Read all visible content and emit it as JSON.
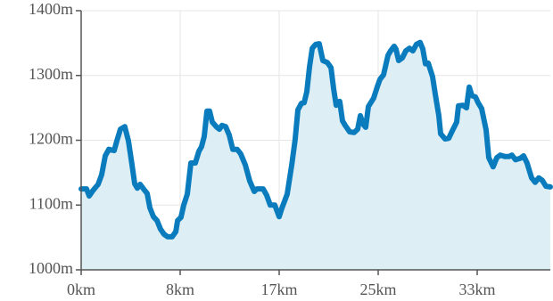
{
  "chart_data": {
    "type": "area",
    "x": [
      0.0,
      0.45,
      0.67,
      0.97,
      1.42,
      1.72,
      2.02,
      2.32,
      2.77,
      2.99,
      3.29,
      3.66,
      3.96,
      4.26,
      4.49,
      4.71,
      4.94,
      5.23,
      5.53,
      5.76,
      6.06,
      6.36,
      6.65,
      6.95,
      7.25,
      7.63,
      7.93,
      8.08,
      8.37,
      8.6,
      8.9,
      9.2,
      9.57,
      9.87,
      10.09,
      10.32,
      10.54,
      10.77,
      10.99,
      11.37,
      11.59,
      11.81,
      12.11,
      12.41,
      12.71,
      13.08,
      13.38,
      13.76,
      14.13,
      14.51,
      14.73,
      15.25,
      15.55,
      15.85,
      16.23,
      16.6,
      16.82,
      17.27,
      17.65,
      17.94,
      18.17,
      18.47,
      18.69,
      18.92,
      19.14,
      19.37,
      19.66,
      19.96,
      20.26,
      20.64,
      20.94,
      21.16,
      21.38,
      21.68,
      21.91,
      22.13,
      22.51,
      22.88,
      23.18,
      23.4,
      23.63,
      23.85,
      24.08,
      24.52,
      24.82,
      25.05,
      25.35,
      25.72,
      25.94,
      26.24,
      26.39,
      26.62,
      26.92,
      27.22,
      27.52,
      27.81,
      28.11,
      28.41,
      28.64,
      28.86,
      29.09,
      29.46,
      29.68,
      29.98,
      30.13,
      30.51,
      30.81,
      31.1,
      31.48,
      31.63,
      32.0,
      32.3,
      32.53,
      32.75,
      33.05,
      33.27,
      33.57,
      33.95,
      34.17,
      34.54,
      34.84,
      35.14,
      35.52,
      35.89,
      36.11,
      36.41,
      36.79,
      37.09,
      37.38,
      37.76,
      38.06,
      38.36,
      38.66,
      38.96,
      39.33
    ],
    "series": [
      {
        "color": "#0a7cbd",
        "fill": "#ddeef5",
        "values": [
          1125,
          1125,
          1114,
          1122,
          1132,
          1147,
          1176,
          1186,
          1184,
          1199,
          1217,
          1221,
          1199,
          1162,
          1133,
          1126,
          1132,
          1125,
          1118,
          1096,
          1082,
          1076,
          1063,
          1055,
          1051,
          1051,
          1059,
          1076,
          1081,
          1100,
          1117,
          1165,
          1165,
          1183,
          1190,
          1206,
          1245,
          1245,
          1228,
          1220,
          1217,
          1223,
          1221,
          1208,
          1186,
          1186,
          1179,
          1162,
          1137,
          1121,
          1125,
          1125,
          1115,
          1100,
          1100,
          1082,
          1095,
          1117,
          1162,
          1201,
          1247,
          1257,
          1258,
          1275,
          1313,
          1342,
          1348,
          1349,
          1323,
          1320,
          1312,
          1280,
          1254,
          1260,
          1230,
          1223,
          1213,
          1212,
          1217,
          1238,
          1225,
          1220,
          1252,
          1265,
          1282,
          1294,
          1301,
          1331,
          1338,
          1345,
          1341,
          1323,
          1327,
          1338,
          1342,
          1338,
          1348,
          1351,
          1341,
          1318,
          1319,
          1298,
          1272,
          1238,
          1210,
          1202,
          1203,
          1214,
          1228,
          1253,
          1254,
          1250,
          1282,
          1269,
          1267,
          1258,
          1249,
          1216,
          1173,
          1159,
          1173,
          1177,
          1175,
          1175,
          1177,
          1170,
          1172,
          1176,
          1165,
          1142,
          1135,
          1142,
          1138,
          1129,
          1128
        ]
      }
    ],
    "xlim": [
      0,
      39.33
    ],
    "xticks": [
      {
        "value": 0,
        "label": "0km"
      },
      {
        "value": 8.3,
        "label": "8km"
      },
      {
        "value": 16.6,
        "label": "17km"
      },
      {
        "value": 24.9,
        "label": "25km"
      },
      {
        "value": 33.2,
        "label": "33km"
      }
    ],
    "ylim": [
      1000,
      1400
    ],
    "yticks": [
      {
        "value": 1000,
        "label": "1000m"
      },
      {
        "value": 1100,
        "label": "1100m"
      },
      {
        "value": 1200,
        "label": "1200m"
      },
      {
        "value": 1300,
        "label": "1300m"
      },
      {
        "value": 1400,
        "label": "1400m"
      }
    ],
    "grid": true
  }
}
